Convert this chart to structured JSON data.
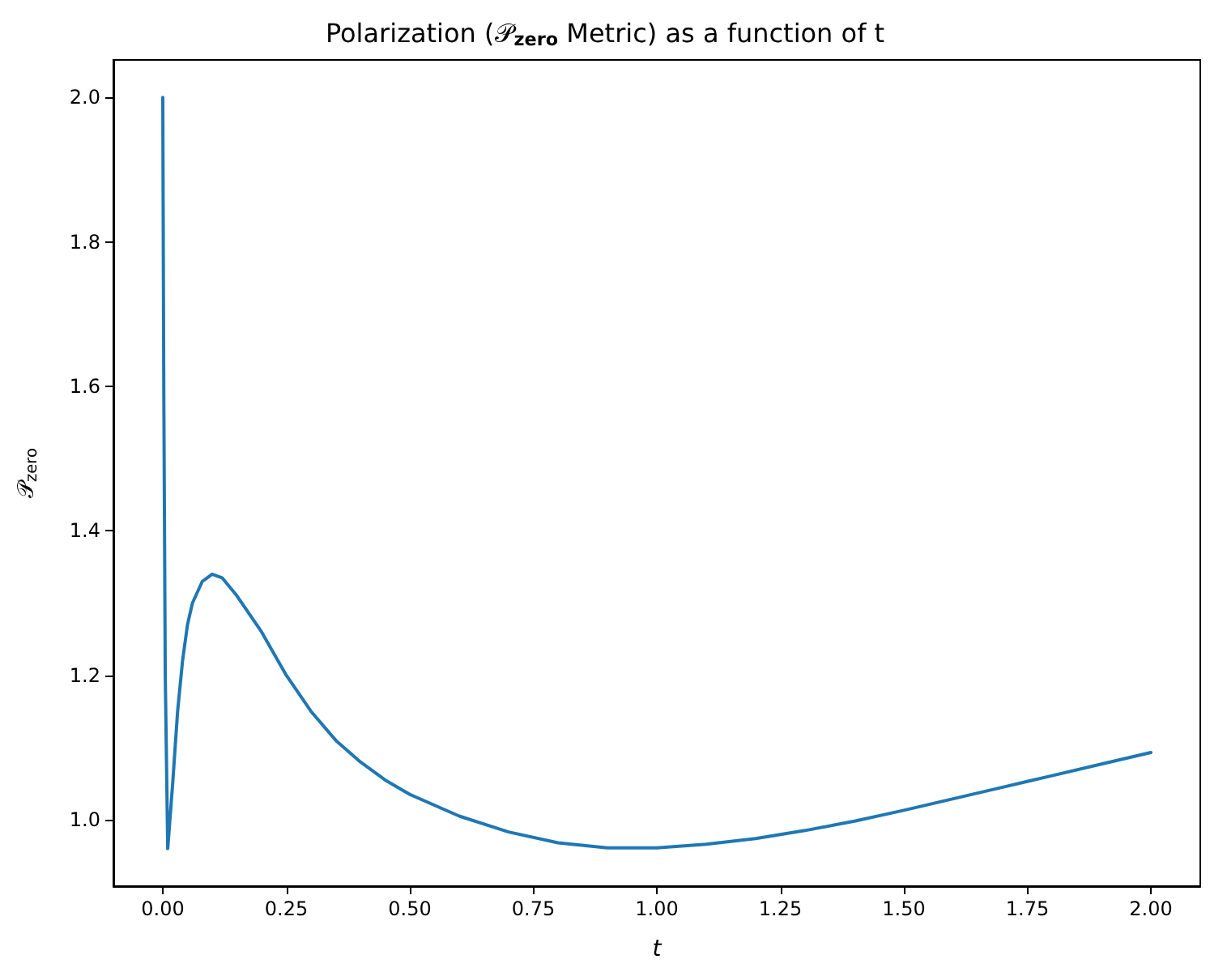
{
  "chart_data": {
    "type": "line",
    "title": "Polarization (𝒫$_{zero}$ Metric) as a function of t",
    "xlabel": "t",
    "ylabel": "𝒫$_{zero}$",
    "x": [
      0,
      0.002,
      0.005,
      0.01,
      0.02,
      0.03,
      0.04,
      0.05,
      0.06,
      0.08,
      0.1,
      0.12,
      0.15,
      0.2,
      0.25,
      0.3,
      0.35,
      0.4,
      0.45,
      0.5,
      0.6,
      0.7,
      0.8,
      0.9,
      1.0,
      1.1,
      1.2,
      1.3,
      1.4,
      1.5,
      1.6,
      1.7,
      1.8,
      1.9,
      2.0
    ],
    "series": [
      {
        "color": "#1f77b4",
        "values": [
          2.0,
          1.6,
          1.2,
          0.96,
          1.05,
          1.15,
          1.22,
          1.27,
          1.3,
          1.33,
          1.34,
          1.335,
          1.31,
          1.26,
          1.2,
          1.15,
          1.11,
          1.08,
          1.055,
          1.035,
          1.005,
          0.983,
          0.968,
          0.961,
          0.961,
          0.966,
          0.974,
          0.985,
          0.998,
          1.013,
          1.029,
          1.045,
          1.061,
          1.077,
          1.093
        ]
      }
    ],
    "xlim": [
      -0.1,
      2.1
    ],
    "xticks": [
      {
        "value": 0,
        "label": "0.00"
      },
      {
        "value": 0.25,
        "label": "0.25"
      },
      {
        "value": 0.5,
        "label": "0.50"
      },
      {
        "value": 0.75,
        "label": "0.75"
      },
      {
        "value": 1,
        "label": "1.00"
      },
      {
        "value": 1.25,
        "label": "1.25"
      },
      {
        "value": 1.5,
        "label": "1.50"
      },
      {
        "value": 1.75,
        "label": "1.75"
      },
      {
        "value": 2,
        "label": "2.00"
      }
    ],
    "ylim": [
      0.908,
      2.052
    ],
    "yticks": [
      {
        "value": 1,
        "label": "1.0"
      },
      {
        "value": 1.2,
        "label": "1.2"
      },
      {
        "value": 1.4,
        "label": "1.4"
      },
      {
        "value": 1.6,
        "label": "1.6"
      },
      {
        "value": 1.8,
        "label": "1.8"
      },
      {
        "value": 2,
        "label": "2.0"
      }
    ],
    "grid": false,
    "marker": "none",
    "line_style": "solid"
  }
}
